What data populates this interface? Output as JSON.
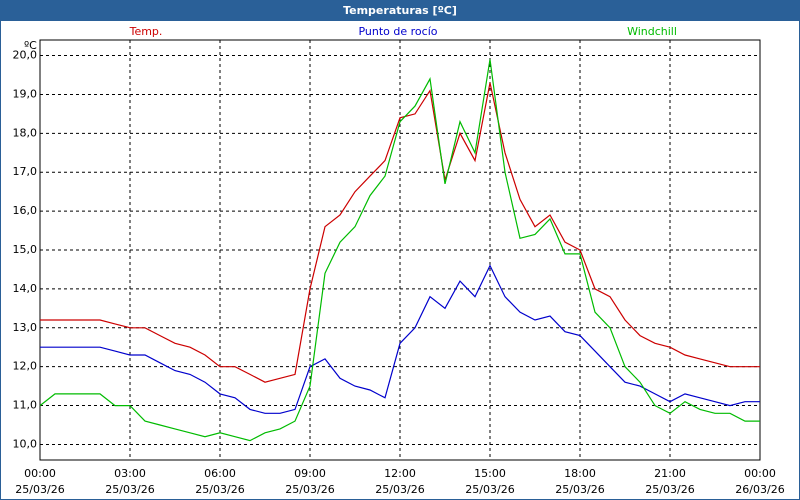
{
  "chart_data": {
    "type": "line",
    "title": "Temperaturas [ºC]",
    "y_unit": "ºC",
    "x": [
      0,
      0.5,
      1,
      1.5,
      2,
      2.5,
      3,
      3.5,
      4,
      4.5,
      5,
      5.5,
      6,
      6.5,
      7,
      7.5,
      8,
      8.5,
      9,
      9.5,
      10,
      10.5,
      11,
      11.5,
      12,
      12.5,
      13,
      13.5,
      14,
      14.5,
      15,
      15.5,
      16,
      16.5,
      17,
      17.5,
      18,
      18.5,
      19,
      19.5,
      20,
      20.5,
      21,
      21.5,
      22,
      22.5,
      23,
      23.5,
      24
    ],
    "series": [
      {
        "name": "Temp.",
        "color": "#cc0000",
        "values": [
          13.2,
          13.2,
          13.2,
          13.2,
          13.2,
          13.1,
          13.0,
          13.0,
          12.8,
          12.6,
          12.5,
          12.3,
          12.0,
          12.0,
          11.8,
          11.6,
          11.7,
          11.8,
          14.0,
          15.6,
          15.9,
          16.5,
          16.9,
          17.3,
          18.4,
          18.5,
          19.1,
          16.8,
          18.0,
          17.3,
          19.3,
          17.5,
          16.3,
          15.6,
          15.9,
          15.2,
          15.0,
          14.0,
          13.8,
          13.2,
          12.8,
          12.6,
          12.5,
          12.3,
          12.2,
          12.1,
          12.0,
          12.0,
          12.0
        ]
      },
      {
        "name": "Punto de rocío",
        "color": "#0000cc",
        "values": [
          12.5,
          12.5,
          12.5,
          12.5,
          12.5,
          12.4,
          12.3,
          12.3,
          12.1,
          11.9,
          11.8,
          11.6,
          11.3,
          11.2,
          10.9,
          10.8,
          10.8,
          10.9,
          12.0,
          12.2,
          11.7,
          11.5,
          11.4,
          11.2,
          12.6,
          13.0,
          13.8,
          13.5,
          14.2,
          13.8,
          14.6,
          13.8,
          13.4,
          13.2,
          13.3,
          12.9,
          12.8,
          12.4,
          12.0,
          11.6,
          11.5,
          11.3,
          11.1,
          11.3,
          11.2,
          11.1,
          11.0,
          11.1,
          11.1
        ]
      },
      {
        "name": "Windchill",
        "color": "#00bb00",
        "values": [
          11.0,
          11.3,
          11.3,
          11.3,
          11.3,
          11.0,
          11.0,
          10.6,
          10.5,
          10.4,
          10.3,
          10.2,
          10.3,
          10.2,
          10.1,
          10.3,
          10.4,
          10.6,
          11.5,
          14.4,
          15.2,
          15.6,
          16.4,
          16.9,
          18.3,
          18.7,
          19.4,
          16.7,
          18.3,
          17.5,
          19.9,
          17.0,
          15.3,
          15.4,
          15.8,
          14.9,
          14.9,
          13.4,
          13.0,
          12.0,
          11.6,
          11.0,
          10.8,
          11.1,
          10.9,
          10.8,
          10.8,
          10.6,
          10.6
        ]
      }
    ],
    "xlim": [
      0,
      24
    ],
    "ylim": [
      9.6,
      20.4
    ],
    "xticks": [
      {
        "value": 0,
        "label": "00:00",
        "date": "25/03/26"
      },
      {
        "value": 3,
        "label": "03:00",
        "date": "25/03/26"
      },
      {
        "value": 6,
        "label": "06:00",
        "date": "25/03/26"
      },
      {
        "value": 9,
        "label": "09:00",
        "date": "25/03/26"
      },
      {
        "value": 12,
        "label": "12:00",
        "date": "25/03/26"
      },
      {
        "value": 15,
        "label": "15:00",
        "date": "25/03/26"
      },
      {
        "value": 18,
        "label": "18:00",
        "date": "25/03/26"
      },
      {
        "value": 21,
        "label": "21:00",
        "date": "25/03/26"
      },
      {
        "value": 24,
        "label": "00:00",
        "date": "26/03/26"
      }
    ],
    "yticks": [
      {
        "value": 10,
        "label": "10,0"
      },
      {
        "value": 11,
        "label": "11,0"
      },
      {
        "value": 12,
        "label": "12,0"
      },
      {
        "value": 13,
        "label": "13,0"
      },
      {
        "value": 14,
        "label": "14,0"
      },
      {
        "value": 15,
        "label": "15,0"
      },
      {
        "value": 16,
        "label": "16,0"
      },
      {
        "value": 17,
        "label": "17,0"
      },
      {
        "value": 18,
        "label": "18,0"
      },
      {
        "value": 19,
        "label": "19,0"
      },
      {
        "value": 20,
        "label": "20,0"
      }
    ],
    "grid": true
  }
}
